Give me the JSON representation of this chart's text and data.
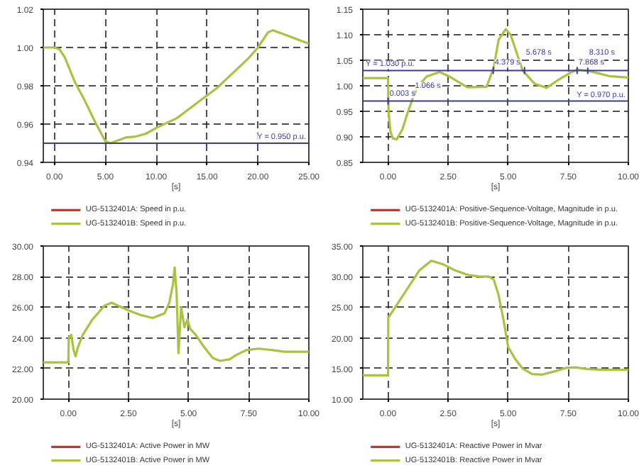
{
  "chart_data": [
    {
      "type": "line",
      "xlabel": "[s]",
      "x": [
        -1.1,
        0,
        0.5,
        1,
        2,
        3,
        4,
        4.5,
        5,
        5.5,
        6,
        7,
        8,
        9,
        10,
        12,
        14,
        16,
        18,
        19,
        20,
        21,
        21.5,
        22,
        23,
        24,
        25
      ],
      "series": [
        {
          "name": "UG-5132401A: Speed in p.u.",
          "color": "#d03030",
          "values": [
            null,
            null,
            null,
            null,
            null,
            null,
            null,
            null,
            null,
            null,
            null,
            null,
            null,
            null,
            null,
            null,
            null,
            null,
            null,
            null,
            null,
            null,
            null,
            null,
            null,
            null,
            null
          ]
        },
        {
          "name": "UG-5132401B: Speed in p.u.",
          "color": "#a9c23f",
          "values": [
            1.0,
            1.0,
            0.999,
            0.995,
            0.982,
            0.972,
            0.961,
            0.956,
            0.951,
            0.95,
            0.951,
            0.953,
            0.9535,
            0.955,
            0.958,
            0.963,
            0.971,
            0.979,
            0.989,
            0.994,
            1.0,
            1.008,
            1.009,
            1.008,
            1.006,
            1.004,
            1.002
          ]
        }
      ],
      "xlim": [
        -1.1,
        25
      ],
      "ylim": [
        0.94,
        1.02
      ],
      "xticks": [
        {
          "value": 0,
          "label": "0.00"
        },
        {
          "value": 5,
          "label": "5.00"
        },
        {
          "value": 10,
          "label": "10.00"
        },
        {
          "value": 15,
          "label": "15.00"
        },
        {
          "value": 20,
          "label": "20.00"
        },
        {
          "value": 25,
          "label": "25.00"
        }
      ],
      "yticks": [
        {
          "value": 0.94,
          "label": "0.94"
        },
        {
          "value": 0.96,
          "label": "0.96"
        },
        {
          "value": 0.98,
          "label": "0.98"
        },
        {
          "value": 1.0,
          "label": "1.00"
        },
        {
          "value": 1.02,
          "label": "1.02"
        }
      ],
      "ref_lines": [
        {
          "axis": "y",
          "value": 0.95,
          "label": "Y = 0.950 p.u.",
          "color": "#3a3aa0"
        }
      ],
      "grid": true,
      "legend": "bottom"
    },
    {
      "type": "line",
      "xlabel": "[s]",
      "x": [
        -1.05,
        0,
        0.02,
        0.1,
        0.2,
        0.36,
        0.6,
        0.8,
        1.0,
        1.2,
        1.6,
        2.15,
        2.6,
        3.3,
        4.1,
        4.4,
        4.6,
        4.9,
        5.1,
        5.3,
        5.6,
        6.1,
        6.6,
        7.1,
        7.6,
        7.9,
        8.45,
        9.2,
        10
      ],
      "series": [
        {
          "name": "UG-5132401A: Positive-Sequence-Voltage, Magnitude in p.u.",
          "color": "#d03030",
          "values": [
            null,
            null,
            null,
            null,
            null,
            null,
            null,
            null,
            null,
            null,
            null,
            null,
            null,
            null,
            null,
            null,
            null,
            null,
            null,
            null,
            null,
            null,
            null,
            null,
            null,
            null,
            null,
            null,
            null
          ]
        },
        {
          "name": "UG-5132401B: Positive-Sequence-Voltage, Magnitude in p.u.",
          "color": "#a9c23f",
          "values": [
            1.015,
            1.015,
            0.95,
            0.91,
            0.897,
            0.895,
            0.915,
            0.945,
            0.972,
            0.995,
            1.018,
            1.027,
            1.017,
            0.997,
            0.998,
            1.036,
            1.09,
            1.111,
            1.1,
            1.072,
            1.03,
            1.004,
            0.996,
            1.012,
            1.026,
            1.032,
            1.028,
            1.019,
            1.016
          ]
        }
      ],
      "xlim": [
        -1.05,
        10
      ],
      "ylim": [
        0.85,
        1.15
      ],
      "xticks": [
        {
          "value": 0,
          "label": "0.00"
        },
        {
          "value": 2.5,
          "label": "2.50"
        },
        {
          "value": 5,
          "label": "5.00"
        },
        {
          "value": 7.5,
          "label": "7.50"
        },
        {
          "value": 10,
          "label": "10.00"
        }
      ],
      "yticks": [
        {
          "value": 0.85,
          "label": "0.85"
        },
        {
          "value": 0.9,
          "label": "0.90"
        },
        {
          "value": 0.95,
          "label": "0.95"
        },
        {
          "value": 1.0,
          "label": "1.00"
        },
        {
          "value": 1.05,
          "label": "1.05"
        },
        {
          "value": 1.1,
          "label": "1.10"
        },
        {
          "value": 1.15,
          "label": "1.15"
        }
      ],
      "ref_lines": [
        {
          "axis": "y",
          "value": 1.03,
          "label": "Y = 1.030 p.u.",
          "color": "#3a3aa0"
        },
        {
          "axis": "y",
          "value": 0.97,
          "label": "Y = 0.970 p.u.",
          "color": "#3a3aa0"
        }
      ],
      "annotations": [
        {
          "text": "0.003 s",
          "x": 0.003,
          "y": 0.97
        },
        {
          "text": "1.066 s",
          "x": 1.066,
          "y": 0.985
        },
        {
          "text": "4.379 s",
          "x": 4.379,
          "y": 1.03
        },
        {
          "text": "5.678 s",
          "x": 5.678,
          "y": 1.03
        },
        {
          "text": "7.868 s",
          "x": 7.868,
          "y": 1.03
        },
        {
          "text": "8.310 s",
          "x": 8.31,
          "y": 1.03
        }
      ],
      "grid": true,
      "legend": "bottom"
    },
    {
      "type": "line",
      "xlabel": "[s]",
      "x": [
        -1.04,
        0,
        0.02,
        0.12,
        0.22,
        0.3,
        0.4,
        0.6,
        1.0,
        1.5,
        1.8,
        2.5,
        3.0,
        3.5,
        4.0,
        4.2,
        4.35,
        4.42,
        4.5,
        4.58,
        4.69,
        4.83,
        4.96,
        5.06,
        5.3,
        5.6,
        6.0,
        6.3,
        6.7,
        7.0,
        7.4,
        7.9,
        8.5,
        9.0,
        10
      ],
      "series": [
        {
          "name": "UG-5132401A: Active Power in MW",
          "color": "#d03030",
          "values": [
            null,
            null,
            null,
            null,
            null,
            null,
            null,
            null,
            null,
            null,
            null,
            null,
            null,
            null,
            null,
            null,
            null,
            null,
            null,
            null,
            null,
            null,
            null,
            null,
            null,
            null,
            null,
            null,
            null,
            null,
            null,
            null,
            null,
            null,
            null
          ]
        },
        {
          "name": "UG-5132401B: Active Power in MW",
          "color": "#a9c23f",
          "values": [
            22.4,
            22.4,
            24.0,
            24.2,
            23.2,
            22.8,
            23.4,
            24.2,
            25.2,
            26.1,
            26.3,
            25.8,
            25.5,
            25.3,
            25.6,
            26.3,
            27.5,
            28.6,
            27.0,
            23.0,
            26.0,
            24.7,
            25.2,
            24.6,
            24.2,
            23.5,
            22.7,
            22.5,
            22.6,
            22.9,
            23.2,
            23.3,
            23.2,
            23.1,
            23.1
          ]
        }
      ],
      "xlim": [
        -1.04,
        10
      ],
      "ylim": [
        20,
        30
      ],
      "xticks": [
        {
          "value": 0,
          "label": "0.00"
        },
        {
          "value": 2.5,
          "label": "2.50"
        },
        {
          "value": 5,
          "label": "5.00"
        },
        {
          "value": 7.5,
          "label": "7.50"
        },
        {
          "value": 10,
          "label": "10.00"
        }
      ],
      "yticks": [
        {
          "value": 20,
          "label": "20.00"
        },
        {
          "value": 22,
          "label": "22.00"
        },
        {
          "value": 24,
          "label": "24.00"
        },
        {
          "value": 26,
          "label": "26.00"
        },
        {
          "value": 28,
          "label": "28.00"
        },
        {
          "value": 30,
          "label": "30.00"
        }
      ],
      "grid": true,
      "legend": "bottom"
    },
    {
      "type": "line",
      "xlabel": "[s]",
      "x": [
        -1.05,
        0,
        0.01,
        0.3,
        0.8,
        1.3,
        1.8,
        2.3,
        2.8,
        3.3,
        3.8,
        4.2,
        4.4,
        4.6,
        4.8,
        5.0,
        5.3,
        5.6,
        6.0,
        6.4,
        6.9,
        7.4,
        7.8,
        8.3,
        9,
        10
      ],
      "series": [
        {
          "name": "UG-5132401A: Reactive Power in Mvar",
          "color": "#d03030",
          "values": [
            null,
            null,
            null,
            null,
            null,
            null,
            null,
            null,
            null,
            null,
            null,
            null,
            null,
            null,
            null,
            null,
            null,
            null,
            null,
            null,
            null,
            null,
            null,
            null,
            null,
            null
          ]
        },
        {
          "name": "UG-5132401B: Reactive Power in Mvar",
          "color": "#a9c23f",
          "values": [
            13.9,
            13.9,
            23.3,
            25.0,
            28.0,
            31.0,
            32.6,
            32.0,
            31.0,
            30.3,
            30.0,
            30.0,
            29.5,
            27.0,
            23.0,
            18.5,
            16.5,
            15.0,
            14.1,
            14.0,
            14.5,
            15.1,
            15.2,
            14.9,
            14.8,
            14.8
          ]
        }
      ],
      "xlim": [
        -1.05,
        10
      ],
      "ylim": [
        10,
        35
      ],
      "xticks": [
        {
          "value": 0,
          "label": "0.00"
        },
        {
          "value": 2.5,
          "label": "2.50"
        },
        {
          "value": 5,
          "label": "5.00"
        },
        {
          "value": 7.5,
          "label": "7.50"
        },
        {
          "value": 10,
          "label": "10.00"
        }
      ],
      "yticks": [
        {
          "value": 10,
          "label": "10.00"
        },
        {
          "value": 15,
          "label": "15.00"
        },
        {
          "value": 20,
          "label": "20.00"
        },
        {
          "value": 25,
          "label": "25.00"
        },
        {
          "value": 30,
          "label": "30.00"
        },
        {
          "value": 35,
          "label": "35.00"
        }
      ],
      "grid": true,
      "legend": "bottom"
    }
  ]
}
